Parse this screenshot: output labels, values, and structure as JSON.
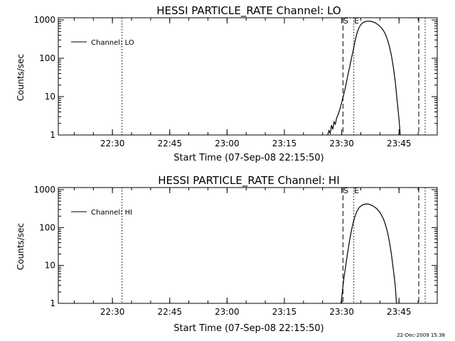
{
  "footer": {
    "timestamp": "22-Dec-2009 15:38"
  },
  "chart_data": [
    {
      "type": "line",
      "title": "HESSI PARTICLE_RATE Channel: LO",
      "xlabel": "Start Time (07-Sep-08 22:15:50)",
      "ylabel": "Counts/sec",
      "yscale": "log",
      "ylim": [
        1,
        1000
      ],
      "xlim": [
        "22:15:50",
        "23:55:00"
      ],
      "x_ticks": [
        "22:30",
        "22:45",
        "23:00",
        "23:15",
        "23:30",
        "23:45"
      ],
      "y_ticks": [
        "1",
        "10",
        "100",
        "1000"
      ],
      "legend": {
        "position": "top-left",
        "entries": [
          "Channel: LO"
        ]
      },
      "markers": [
        {
          "label": "S",
          "time": "23:30:20",
          "style": "dashed"
        },
        {
          "label": "E",
          "time": "23:33:10",
          "style": "dotted"
        }
      ],
      "extra_lines": [
        {
          "time": "22:32:30",
          "style": "dotted"
        },
        {
          "time": "23:50:10",
          "style": "dashed"
        },
        {
          "time": "23:51:50",
          "style": "dotted"
        }
      ],
      "series": [
        {
          "name": "Channel: LO",
          "points": [
            [
              "23:26:20",
              1
            ],
            [
              "23:26:40",
              1.3
            ],
            [
              "23:27:00",
              1.1
            ],
            [
              "23:27:20",
              1.8
            ],
            [
              "23:27:40",
              1.4
            ],
            [
              "23:28:00",
              2.2
            ],
            [
              "23:28:20",
              1.9
            ],
            [
              "23:28:40",
              2.8
            ],
            [
              "23:29:00",
              3.3
            ],
            [
              "23:29:30",
              4.6
            ],
            [
              "23:30:00",
              7
            ],
            [
              "23:30:30",
              11
            ],
            [
              "23:31:00",
              18
            ],
            [
              "23:31:30",
              32
            ],
            [
              "23:32:00",
              55
            ],
            [
              "23:32:30",
              95
            ],
            [
              "23:33:00",
              160
            ],
            [
              "23:33:30",
              280
            ],
            [
              "23:34:00",
              450
            ],
            [
              "23:34:30",
              620
            ],
            [
              "23:35:00",
              750
            ],
            [
              "23:35:30",
              840
            ],
            [
              "23:36:00",
              890
            ],
            [
              "23:36:30",
              920
            ],
            [
              "23:37:00",
              930
            ],
            [
              "23:37:30",
              920
            ],
            [
              "23:38:00",
              900
            ],
            [
              "23:38:30",
              860
            ],
            [
              "23:39:00",
              810
            ],
            [
              "23:39:30",
              750
            ],
            [
              "23:40:00",
              680
            ],
            [
              "23:40:30",
              600
            ],
            [
              "23:41:00",
              510
            ],
            [
              "23:41:30",
              410
            ],
            [
              "23:42:00",
              300
            ],
            [
              "23:42:30",
              200
            ],
            [
              "23:43:00",
              120
            ],
            [
              "23:43:30",
              60
            ],
            [
              "23:44:00",
              25
            ],
            [
              "23:44:30",
              8
            ],
            [
              "23:45:00",
              2.5
            ],
            [
              "23:45:20",
              1
            ]
          ]
        }
      ]
    },
    {
      "type": "line",
      "title": "HESSI PARTICLE_RATE Channel: HI",
      "xlabel": "Start Time (07-Sep-08 22:15:50)",
      "ylabel": "Counts/sec",
      "yscale": "log",
      "ylim": [
        1,
        1000
      ],
      "xlim": [
        "22:15:50",
        "23:55:00"
      ],
      "x_ticks": [
        "22:30",
        "22:45",
        "23:00",
        "23:15",
        "23:30",
        "23:45"
      ],
      "y_ticks": [
        "1",
        "10",
        "100",
        "1000"
      ],
      "legend": {
        "position": "top-left",
        "entries": [
          "Channel: HI"
        ]
      },
      "markers": [
        {
          "label": "S",
          "time": "23:30:20",
          "style": "dashed"
        },
        {
          "label": "E",
          "time": "23:33:10",
          "style": "dotted"
        }
      ],
      "extra_lines": [
        {
          "time": "22:32:30",
          "style": "dotted"
        },
        {
          "time": "23:50:10",
          "style": "dashed"
        },
        {
          "time": "23:51:50",
          "style": "dotted"
        }
      ],
      "series": [
        {
          "name": "Channel: HI",
          "points": [
            [
              "23:29:50",
              1
            ],
            [
              "23:30:10",
              2
            ],
            [
              "23:30:30",
              4
            ],
            [
              "23:31:00",
              9
            ],
            [
              "23:31:30",
              20
            ],
            [
              "23:32:00",
              42
            ],
            [
              "23:32:30",
              80
            ],
            [
              "23:33:00",
              135
            ],
            [
              "23:33:30",
              200
            ],
            [
              "23:34:00",
              270
            ],
            [
              "23:34:30",
              330
            ],
            [
              "23:35:00",
              370
            ],
            [
              "23:35:30",
              400
            ],
            [
              "23:36:00",
              415
            ],
            [
              "23:36:30",
              420
            ],
            [
              "23:37:00",
              415
            ],
            [
              "23:37:30",
              400
            ],
            [
              "23:38:00",
              380
            ],
            [
              "23:38:30",
              355
            ],
            [
              "23:39:00",
              325
            ],
            [
              "23:39:30",
              290
            ],
            [
              "23:40:00",
              250
            ],
            [
              "23:40:30",
              205
            ],
            [
              "23:41:00",
              160
            ],
            [
              "23:41:30",
              115
            ],
            [
              "23:42:00",
              75
            ],
            [
              "23:42:30",
              42
            ],
            [
              "23:43:00",
              20
            ],
            [
              "23:43:30",
              8
            ],
            [
              "23:44:00",
              3
            ],
            [
              "23:44:20",
              1
            ]
          ]
        }
      ]
    }
  ]
}
